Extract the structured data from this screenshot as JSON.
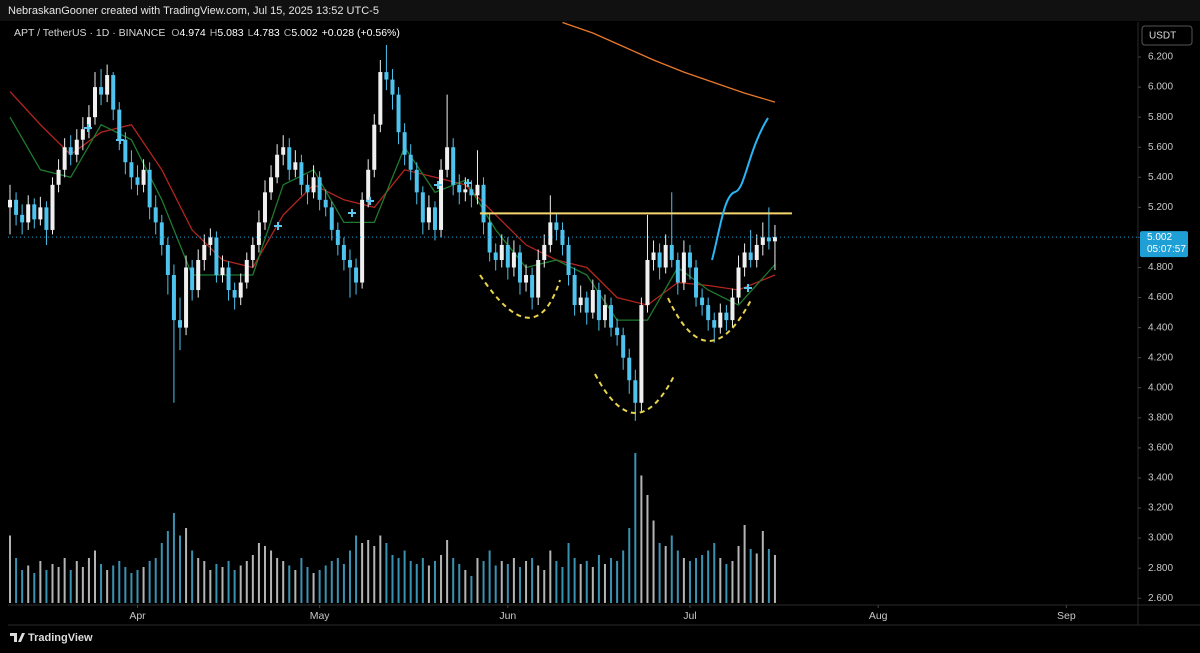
{
  "header": {
    "credit": "NebraskanGooner created with TradingView.com, Jul 15, 2025 13:52 UTC-5",
    "brand": "TradingView"
  },
  "chart_data": {
    "type": "candlestick",
    "symbol": "APT / TetherUS · 1D · BINANCE",
    "ohlc_letters": [
      "O",
      "H",
      "L",
      "C"
    ],
    "change": "+0.028 (+0.56%)",
    "currency": "USDT",
    "countdown": "05:07:57",
    "up_color": "#f0f0f0",
    "down_color": "#4ec3ee",
    "price_color": "#1e9fd6",
    "candles": [
      [
        5.2,
        5.35,
        5.02,
        5.25
      ],
      [
        5.25,
        5.3,
        5.08,
        5.15
      ],
      [
        5.15,
        5.22,
        5.02,
        5.1
      ],
      [
        5.1,
        5.28,
        5.05,
        5.22
      ],
      [
        5.22,
        5.26,
        5.06,
        5.12
      ],
      [
        5.12,
        5.27,
        5.08,
        5.2
      ],
      [
        5.2,
        5.24,
        4.95,
        5.05
      ],
      [
        5.05,
        5.4,
        5.02,
        5.35
      ],
      [
        5.35,
        5.52,
        5.3,
        5.45
      ],
      [
        5.45,
        5.66,
        5.4,
        5.6
      ],
      [
        5.6,
        5.68,
        5.48,
        5.55
      ],
      [
        5.55,
        5.72,
        5.5,
        5.65
      ],
      [
        5.65,
        5.8,
        5.58,
        5.72
      ],
      [
        5.72,
        5.88,
        5.66,
        5.8
      ],
      [
        5.8,
        6.1,
        5.75,
        6.0
      ],
      [
        6.0,
        6.12,
        5.88,
        5.95
      ],
      [
        5.95,
        6.15,
        5.9,
        6.08
      ],
      [
        6.08,
        6.1,
        5.78,
        5.85
      ],
      [
        5.85,
        5.9,
        5.58,
        5.65
      ],
      [
        5.65,
        5.7,
        5.42,
        5.5
      ],
      [
        5.5,
        5.58,
        5.32,
        5.4
      ],
      [
        5.4,
        5.48,
        5.28,
        5.35
      ],
      [
        5.35,
        5.52,
        5.3,
        5.45
      ],
      [
        5.45,
        5.5,
        5.12,
        5.2
      ],
      [
        5.2,
        5.28,
        5.02,
        5.1
      ],
      [
        5.1,
        5.15,
        4.88,
        4.95
      ],
      [
        4.95,
        5.0,
        4.62,
        4.75
      ],
      [
        4.75,
        4.82,
        3.9,
        4.45
      ],
      [
        4.45,
        4.6,
        4.25,
        4.4
      ],
      [
        4.4,
        4.88,
        4.35,
        4.8
      ],
      [
        4.8,
        4.85,
        4.58,
        4.65
      ],
      [
        4.65,
        4.92,
        4.6,
        4.85
      ],
      [
        4.85,
        5.02,
        4.78,
        4.95
      ],
      [
        4.95,
        5.06,
        4.88,
        5.0
      ],
      [
        5.0,
        5.04,
        4.7,
        4.75
      ],
      [
        4.75,
        4.88,
        4.7,
        4.8
      ],
      [
        4.8,
        4.84,
        4.58,
        4.65
      ],
      [
        4.65,
        4.7,
        4.52,
        4.6
      ],
      [
        4.6,
        4.76,
        4.55,
        4.7
      ],
      [
        4.7,
        4.9,
        4.66,
        4.85
      ],
      [
        4.85,
        5.0,
        4.8,
        4.95
      ],
      [
        4.95,
        5.18,
        4.9,
        5.1
      ],
      [
        5.1,
        5.38,
        5.05,
        5.3
      ],
      [
        5.3,
        5.48,
        5.25,
        5.4
      ],
      [
        5.4,
        5.62,
        5.36,
        5.55
      ],
      [
        5.55,
        5.68,
        5.48,
        5.6
      ],
      [
        5.6,
        5.66,
        5.38,
        5.45
      ],
      [
        5.45,
        5.58,
        5.4,
        5.5
      ],
      [
        5.5,
        5.55,
        5.28,
        5.35
      ],
      [
        5.35,
        5.42,
        5.22,
        5.3
      ],
      [
        5.3,
        5.48,
        5.26,
        5.4
      ],
      [
        5.4,
        5.44,
        5.18,
        5.25
      ],
      [
        5.25,
        5.32,
        5.14,
        5.2
      ],
      [
        5.2,
        5.24,
        4.98,
        5.05
      ],
      [
        5.05,
        5.1,
        4.88,
        4.95
      ],
      [
        4.95,
        5.0,
        4.78,
        4.85
      ],
      [
        4.85,
        4.92,
        4.6,
        4.8
      ],
      [
        4.8,
        4.86,
        4.62,
        4.7
      ],
      [
        4.7,
        5.3,
        4.66,
        5.25
      ],
      [
        5.25,
        5.52,
        5.2,
        5.45
      ],
      [
        5.45,
        5.82,
        5.4,
        5.75
      ],
      [
        5.75,
        6.18,
        5.7,
        6.1
      ],
      [
        6.1,
        6.28,
        5.98,
        6.05
      ],
      [
        6.05,
        6.12,
        5.85,
        5.95
      ],
      [
        5.95,
        6.0,
        5.62,
        5.7
      ],
      [
        5.7,
        5.76,
        5.48,
        5.55
      ],
      [
        5.55,
        5.62,
        5.38,
        5.45
      ],
      [
        5.45,
        5.5,
        5.22,
        5.3
      ],
      [
        5.3,
        5.34,
        5.02,
        5.1
      ],
      [
        5.1,
        5.28,
        5.05,
        5.2
      ],
      [
        5.2,
        5.24,
        4.98,
        5.05
      ],
      [
        5.05,
        5.52,
        5.0,
        5.45
      ],
      [
        5.45,
        5.95,
        5.4,
        5.6
      ],
      [
        5.6,
        5.66,
        5.28,
        5.35
      ],
      [
        5.35,
        5.42,
        5.22,
        5.3
      ],
      [
        5.3,
        5.4,
        5.24,
        5.32
      ],
      [
        5.32,
        5.38,
        5.2,
        5.28
      ],
      [
        5.28,
        5.58,
        5.22,
        5.35
      ],
      [
        5.35,
        5.4,
        5.02,
        5.1
      ],
      [
        5.1,
        5.16,
        4.84,
        4.9
      ],
      [
        4.9,
        4.96,
        4.78,
        4.85
      ],
      [
        4.85,
        5.02,
        4.8,
        4.95
      ],
      [
        4.95,
        5.0,
        4.72,
        4.8
      ],
      [
        4.8,
        4.98,
        4.74,
        4.9
      ],
      [
        4.9,
        4.95,
        4.62,
        4.7
      ],
      [
        4.7,
        4.82,
        4.64,
        4.75
      ],
      [
        4.75,
        4.8,
        4.52,
        4.6
      ],
      [
        4.6,
        4.92,
        4.55,
        4.85
      ],
      [
        4.85,
        5.02,
        4.8,
        4.95
      ],
      [
        4.95,
        5.28,
        4.9,
        5.1
      ],
      [
        5.1,
        5.16,
        4.98,
        5.05
      ],
      [
        5.05,
        5.1,
        4.88,
        4.95
      ],
      [
        4.95,
        5.0,
        4.68,
        4.75
      ],
      [
        4.75,
        4.8,
        4.48,
        4.55
      ],
      [
        4.55,
        4.68,
        4.5,
        4.6
      ],
      [
        4.6,
        4.64,
        4.42,
        4.5
      ],
      [
        4.5,
        4.72,
        4.46,
        4.65
      ],
      [
        4.65,
        4.7,
        4.38,
        4.45
      ],
      [
        4.45,
        4.62,
        4.4,
        4.55
      ],
      [
        4.55,
        4.6,
        4.34,
        4.4
      ],
      [
        4.4,
        4.46,
        4.28,
        4.35
      ],
      [
        4.35,
        4.4,
        4.12,
        4.2
      ],
      [
        4.2,
        4.26,
        3.96,
        4.05
      ],
      [
        4.05,
        4.12,
        3.78,
        3.9
      ],
      [
        3.9,
        4.6,
        3.84,
        4.55
      ],
      [
        4.55,
        5.15,
        4.5,
        4.85
      ],
      [
        4.85,
        4.98,
        4.78,
        4.9
      ],
      [
        4.9,
        4.96,
        4.72,
        4.8
      ],
      [
        4.8,
        5.02,
        4.76,
        4.95
      ],
      [
        4.95,
        5.3,
        4.8,
        4.85
      ],
      [
        4.85,
        4.9,
        4.62,
        4.7
      ],
      [
        4.7,
        4.98,
        4.65,
        4.9
      ],
      [
        4.9,
        4.95,
        4.72,
        4.8
      ],
      [
        4.8,
        4.85,
        4.54,
        4.6
      ],
      [
        4.6,
        4.66,
        4.48,
        4.55
      ],
      [
        4.55,
        4.6,
        4.38,
        4.45
      ],
      [
        4.45,
        4.5,
        4.3,
        4.4
      ],
      [
        4.4,
        4.56,
        4.36,
        4.5
      ],
      [
        4.5,
        4.55,
        4.38,
        4.45
      ],
      [
        4.45,
        4.66,
        4.4,
        4.6
      ],
      [
        4.6,
        4.88,
        4.56,
        4.8
      ],
      [
        4.8,
        4.96,
        4.74,
        4.9
      ],
      [
        4.9,
        5.05,
        4.8,
        4.85
      ],
      [
        4.85,
        5.02,
        4.8,
        4.95
      ],
      [
        4.95,
        5.1,
        4.88,
        5.0
      ],
      [
        5.0,
        5.2,
        4.92,
        4.974
      ],
      [
        4.974,
        5.083,
        4.783,
        5.002
      ]
    ],
    "volume": [
      45,
      30,
      22,
      25,
      20,
      28,
      22,
      26,
      24,
      30,
      22,
      28,
      24,
      30,
      35,
      26,
      22,
      25,
      28,
      24,
      20,
      22,
      24,
      28,
      30,
      40,
      48,
      60,
      45,
      50,
      35,
      30,
      28,
      22,
      26,
      24,
      28,
      22,
      25,
      28,
      32,
      40,
      38,
      35,
      30,
      28,
      25,
      22,
      30,
      24,
      20,
      22,
      25,
      28,
      30,
      26,
      35,
      45,
      40,
      42,
      38,
      45,
      40,
      32,
      30,
      35,
      28,
      26,
      30,
      25,
      28,
      32,
      42,
      30,
      26,
      22,
      18,
      30,
      28,
      35,
      25,
      28,
      26,
      30,
      24,
      28,
      30,
      25,
      22,
      35,
      28,
      24,
      40,
      30,
      26,
      28,
      24,
      32,
      26,
      30,
      28,
      35,
      50,
      100,
      85,
      72,
      55,
      40,
      38,
      45,
      35,
      30,
      28,
      30,
      32,
      35,
      40,
      30,
      26,
      28,
      38,
      52,
      36,
      33,
      48,
      36,
      32
    ],
    "xlim": [
      -0.33,
      185.8
    ],
    "xticks": [
      {
        "value": 21,
        "label": "Apr"
      },
      {
        "value": 51,
        "label": "May"
      },
      {
        "value": 82,
        "label": "Jun"
      },
      {
        "value": 112,
        "label": "Jul"
      },
      {
        "value": 143,
        "label": "Aug"
      },
      {
        "value": 174,
        "label": "Sep"
      }
    ],
    "ylim": [
      2.555,
      6.433
    ],
    "yticks": [
      {
        "value": 6.2,
        "label": "6.200"
      },
      {
        "value": 6.0,
        "label": "6.000"
      },
      {
        "value": 5.8,
        "label": "5.800"
      },
      {
        "value": 5.6,
        "label": "5.600"
      },
      {
        "value": 5.4,
        "label": "5.400"
      },
      {
        "value": 5.2,
        "label": "5.200"
      },
      {
        "value": 5.0,
        "label": "5.000"
      },
      {
        "value": 4.8,
        "label": "4.800"
      },
      {
        "value": 4.6,
        "label": "4.600"
      },
      {
        "value": 4.4,
        "label": "4.400"
      },
      {
        "value": 4.2,
        "label": "4.200"
      },
      {
        "value": 4.0,
        "label": "4.000"
      },
      {
        "value": 3.8,
        "label": "3.800"
      },
      {
        "value": 3.6,
        "label": "3.600"
      },
      {
        "value": 3.4,
        "label": "3.400"
      },
      {
        "value": 3.2,
        "label": "3.200"
      },
      {
        "value": 3.0,
        "label": "3.000"
      },
      {
        "value": 2.8,
        "label": "2.800"
      },
      {
        "value": 2.6,
        "label": "2.600"
      }
    ],
    "lines": [
      {
        "color": "#e8792b",
        "x": [
          91,
          96,
          101,
          106,
          111,
          116,
          121,
          126
        ],
        "values": [
          6.43,
          6.36,
          6.27,
          6.18,
          6.1,
          6.03,
          5.96,
          5.9
        ]
      },
      {
        "color": "#b3261e",
        "x": [
          0,
          5,
          10,
          15,
          20,
          25,
          30,
          35,
          40,
          45,
          50,
          55,
          60,
          65,
          70,
          75,
          80,
          85,
          90,
          95,
          100,
          105,
          110,
          115,
          120,
          126
        ],
        "values": [
          5.97,
          5.75,
          5.55,
          5.7,
          5.75,
          5.45,
          5.05,
          4.85,
          4.8,
          5.15,
          5.35,
          5.25,
          5.2,
          5.45,
          5.4,
          5.35,
          5.15,
          4.95,
          4.85,
          4.8,
          4.6,
          4.55,
          4.7,
          4.68,
          4.65,
          4.75
        ]
      },
      {
        "color": "#1f7a2e",
        "x": [
          0,
          5,
          10,
          15,
          20,
          25,
          30,
          35,
          40,
          45,
          50,
          55,
          60,
          65,
          70,
          75,
          80,
          85,
          90,
          95,
          100,
          105,
          110,
          115,
          120,
          126
        ],
        "values": [
          5.8,
          5.45,
          5.4,
          5.75,
          5.65,
          5.25,
          4.75,
          4.75,
          4.75,
          5.35,
          5.45,
          5.1,
          5.1,
          5.6,
          5.3,
          5.38,
          5.05,
          4.8,
          4.85,
          4.75,
          4.45,
          4.45,
          4.8,
          4.65,
          4.55,
          4.82
        ]
      }
    ],
    "level": {
      "value": 5.16,
      "x": [
        77.4,
        128.8
      ],
      "color": "#f5d76e"
    }
  }
}
